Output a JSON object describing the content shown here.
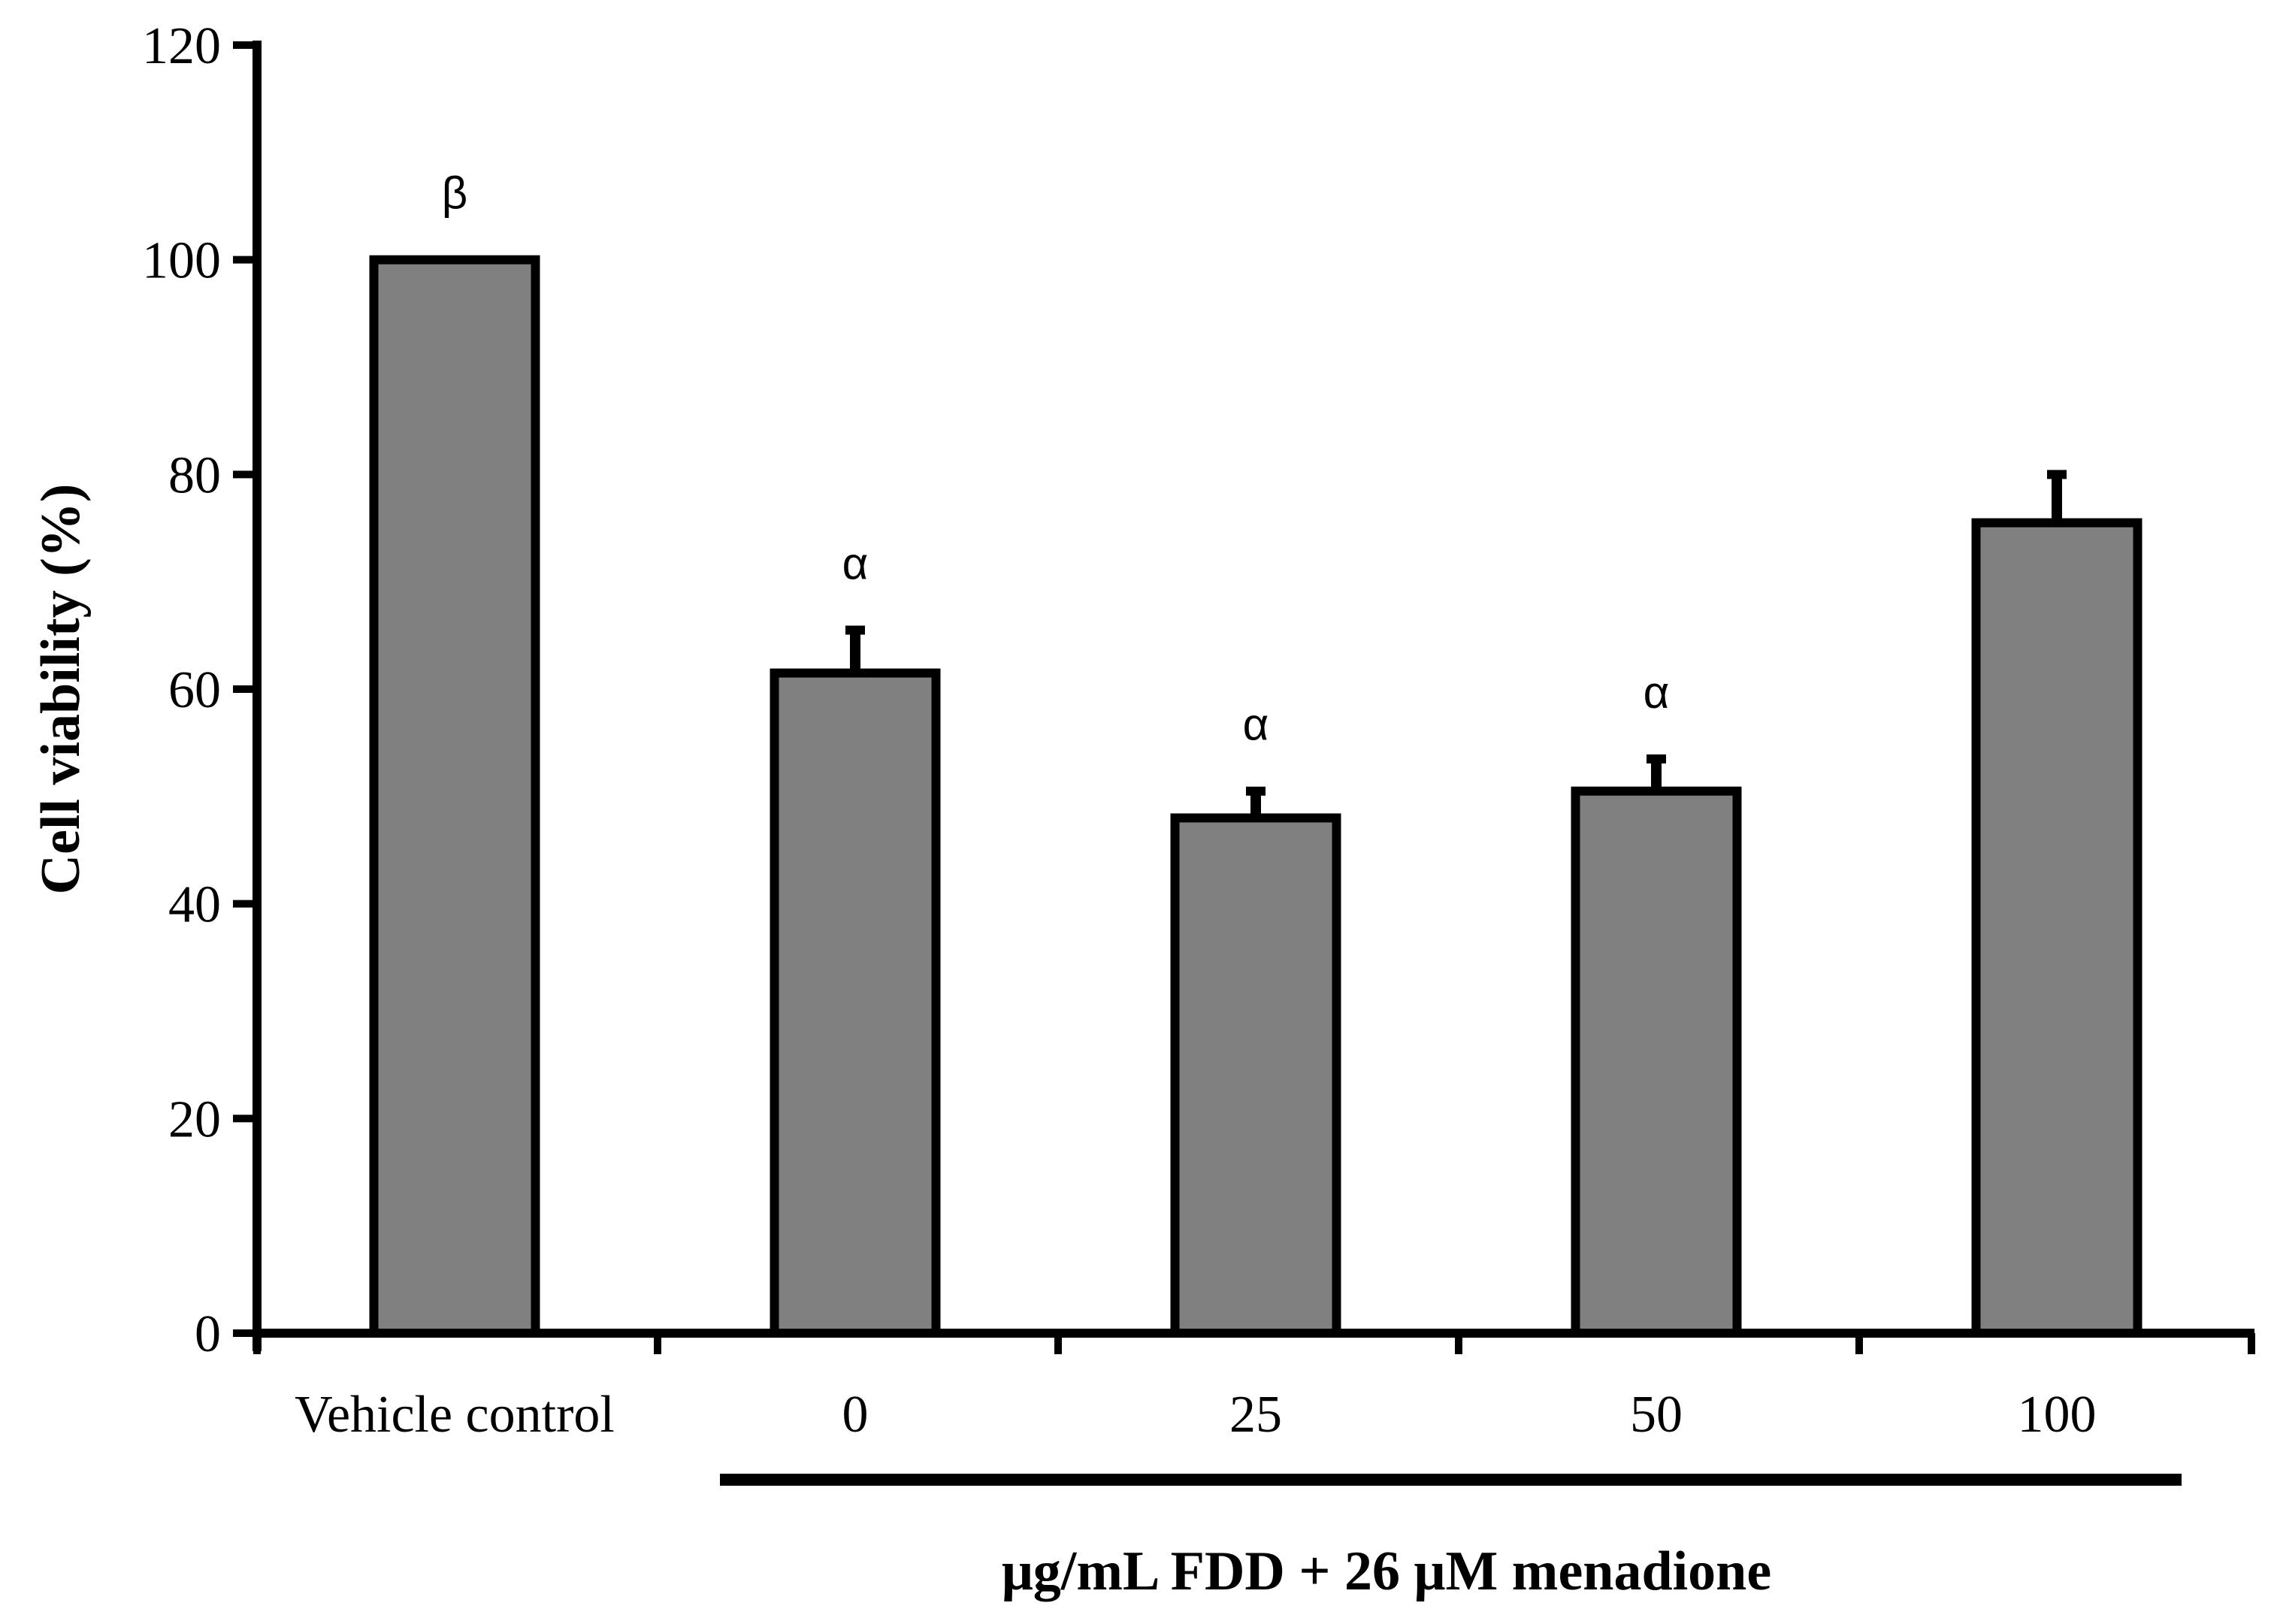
{
  "chart_data": {
    "type": "bar",
    "title": "",
    "categories": [
      "Vehicle control",
      "0",
      "25",
      "50",
      "100"
    ],
    "values": [
      100,
      61.5,
      48,
      50.5,
      75.5
    ],
    "errors": [
      0,
      4,
      2.5,
      3,
      4.5
    ],
    "significance": [
      "β",
      "α",
      "α",
      "α",
      ""
    ],
    "xlabel": "μg/mL FDD + 26 μM menadione",
    "ylabel": "Cell viability (%)",
    "ylim": [
      0,
      120
    ],
    "yticks": [
      "0",
      "20",
      "40",
      "60",
      "80",
      "100",
      "120"
    ],
    "grid": false,
    "legend": false,
    "bar_color": "#808080",
    "edge_color": "#000000"
  }
}
